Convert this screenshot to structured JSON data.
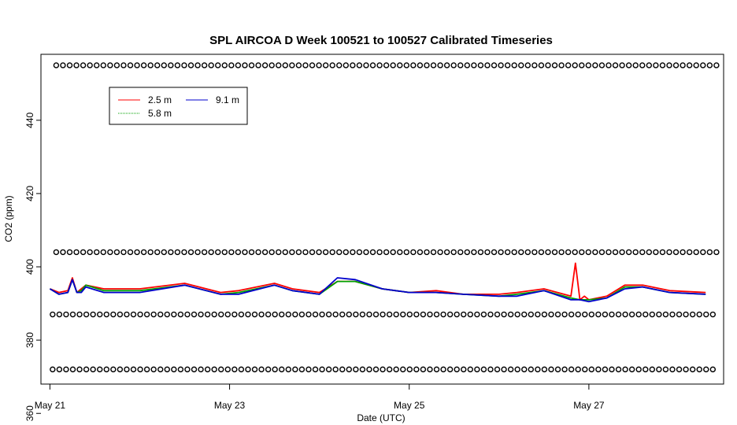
{
  "chart_data": {
    "type": "line",
    "title": "SPL AIRCOA D  Week 100521 to 100527  Calibrated Timeseries",
    "xlabel": "Date (UTC)",
    "ylabel": "CO2 (ppm)",
    "xlim_days": [
      20.9,
      28.5
    ],
    "ylim": [
      368,
      458
    ],
    "x_ticks": [
      {
        "label": "May 21",
        "day": 21
      },
      {
        "label": "May 23",
        "day": 23
      },
      {
        "label": "May 25",
        "day": 25
      },
      {
        "label": "May 27",
        "day": 27
      }
    ],
    "y_ticks": [
      360,
      380,
      400,
      420,
      440
    ],
    "legend": {
      "position": "top-left",
      "entries": [
        {
          "label": "2.5 m",
          "color": "#ff0000"
        },
        {
          "label": "5.8 m",
          "color": "#00a000"
        },
        {
          "label": "9.1 m",
          "color": "#0000cc"
        }
      ]
    },
    "series": [
      {
        "name": "2.5 m",
        "color": "#ff0000",
        "x": [
          21.0,
          21.1,
          21.2,
          21.25,
          21.3,
          21.35,
          21.4,
          21.6,
          22.0,
          22.5,
          22.9,
          23.1,
          23.5,
          23.7,
          24.0,
          24.2,
          24.4,
          24.7,
          25.0,
          25.3,
          25.6,
          26.0,
          26.2,
          26.5,
          26.8,
          26.85,
          26.9,
          26.95,
          27.0,
          27.2,
          27.4,
          27.6,
          27.9,
          28.3
        ],
        "y": [
          394,
          393,
          393.5,
          397,
          393,
          394,
          395,
          394,
          394,
          395.5,
          393,
          393.5,
          395.5,
          394,
          393,
          396,
          396,
          394,
          393,
          393.5,
          392.5,
          392.5,
          393,
          394,
          392,
          401,
          391,
          392,
          391,
          392,
          395,
          395,
          393.5,
          393
        ]
      },
      {
        "name": "5.8 m",
        "color": "#00a000",
        "x": [
          21.0,
          21.1,
          21.2,
          21.25,
          21.3,
          21.35,
          21.4,
          21.6,
          22.0,
          22.5,
          22.9,
          23.1,
          23.5,
          23.7,
          24.0,
          24.2,
          24.4,
          24.7,
          25.0,
          25.3,
          25.6,
          26.0,
          26.2,
          26.5,
          26.8,
          26.9,
          27.0,
          27.2,
          27.4,
          27.6,
          27.9,
          28.3
        ],
        "y": [
          394,
          392.5,
          393,
          396.5,
          393,
          393.5,
          395,
          393.5,
          393.5,
          395,
          392.5,
          393,
          395,
          393.5,
          392.5,
          396,
          396,
          394,
          393,
          393,
          392.5,
          392,
          392.5,
          393.5,
          391.5,
          391,
          391,
          391.5,
          394.5,
          394.5,
          393,
          392.5
        ]
      },
      {
        "name": "9.1 m",
        "color": "#0000cc",
        "x": [
          21.0,
          21.1,
          21.2,
          21.25,
          21.3,
          21.35,
          21.4,
          21.6,
          22.0,
          22.5,
          22.9,
          23.1,
          23.5,
          23.7,
          24.0,
          24.2,
          24.4,
          24.7,
          25.0,
          25.3,
          25.6,
          26.0,
          26.2,
          26.5,
          26.8,
          26.9,
          27.0,
          27.2,
          27.4,
          27.6,
          27.9,
          28.3
        ],
        "y": [
          394,
          392.5,
          393,
          396.5,
          393,
          393,
          394.5,
          393,
          393,
          395,
          392.5,
          392.5,
          395,
          393.5,
          392.5,
          397,
          396.5,
          394,
          393,
          393,
          392.5,
          392,
          392,
          393.5,
          391,
          391,
          390.5,
          391.5,
          394,
          394.5,
          393,
          392.5
        ]
      }
    ],
    "marker_rows": [
      {
        "y": 455,
        "x_start": 21.07,
        "x_end": 28.43,
        "spacing": 0.075
      },
      {
        "y": 404,
        "x_start": 21.07,
        "x_end": 28.43,
        "spacing": 0.075
      },
      {
        "y": 387,
        "x_start": 21.03,
        "x_end": 28.43,
        "spacing": 0.075
      },
      {
        "y": 372,
        "x_start": 21.03,
        "x_end": 28.43,
        "spacing": 0.075
      }
    ]
  }
}
